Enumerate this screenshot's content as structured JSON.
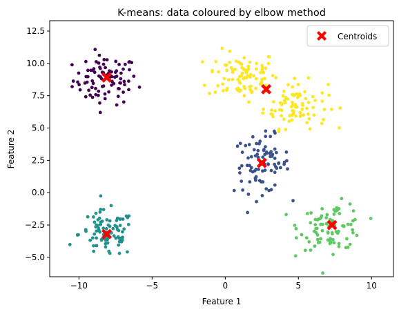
{
  "chart_data": {
    "type": "scatter",
    "title": "K-means: data coloured by elbow method",
    "xlabel": "Feature 1",
    "ylabel": "Feature 2",
    "xlim": [
      -12,
      11.5
    ],
    "ylim": [
      -6.5,
      13.3
    ],
    "xticks": [
      -10,
      -5,
      0,
      5,
      10
    ],
    "xtick_labels": [
      "−10",
      "−5",
      "0",
      "5",
      "10"
    ],
    "yticks": [
      -5.0,
      -2.5,
      0.0,
      2.5,
      5.0,
      7.5,
      10.0,
      12.5
    ],
    "ytick_labels": [
      "−5.0",
      "−2.5",
      "0.0",
      "2.5",
      "5.0",
      "7.5",
      "10.0",
      "12.5"
    ],
    "grid": false,
    "legend": {
      "position": "top-right",
      "entries": [
        "Centroids"
      ]
    },
    "clusters": [
      {
        "color": "#440154",
        "center": [
          -8.2,
          8.7
        ],
        "spread": [
          1.1,
          0.95
        ],
        "n": 90
      },
      {
        "color": "#fde725",
        "center": [
          1.2,
          9.1
        ],
        "spread": [
          1.2,
          0.95
        ],
        "n": 85
      },
      {
        "color": "#fde725",
        "center": [
          4.8,
          6.8
        ],
        "spread": [
          1.1,
          0.9
        ],
        "n": 85
      },
      {
        "color": "#3b528b",
        "center": [
          2.5,
          2.2
        ],
        "spread": [
          0.95,
          1.1
        ],
        "n": 90
      },
      {
        "color": "#21918c",
        "center": [
          -8.1,
          -3.2
        ],
        "spread": [
          0.95,
          0.9
        ],
        "n": 90
      },
      {
        "color": "#5ec962",
        "center": [
          7.3,
          -2.6
        ],
        "spread": [
          1.1,
          0.9
        ],
        "n": 90
      }
    ],
    "centroids": {
      "name": "Centroids",
      "color": "#ff0000",
      "marker": "X",
      "points": [
        [
          -8.1,
          8.9
        ],
        [
          2.8,
          8.0
        ],
        [
          2.5,
          2.3
        ],
        [
          -8.1,
          -3.2
        ],
        [
          7.3,
          -2.5
        ]
      ]
    }
  }
}
